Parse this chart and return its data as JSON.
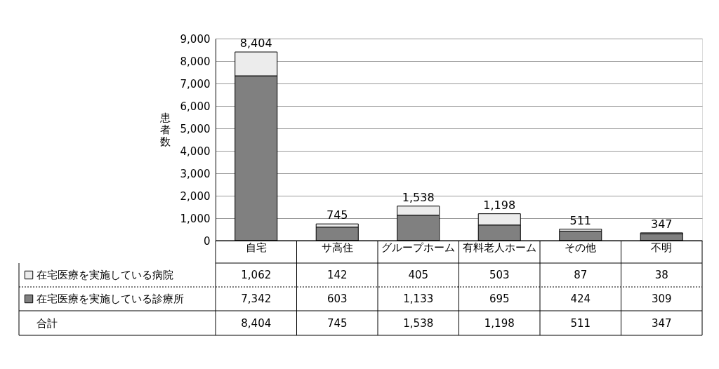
{
  "chart_data": {
    "type": "bar",
    "stacked": true,
    "ylabel": "患者数",
    "categories": [
      "自宅",
      "サ高住",
      "グループホーム",
      "有料老人ホーム",
      "その他",
      "不明"
    ],
    "series": [
      {
        "name": "在宅医療を実施している診療所",
        "color": "#808080",
        "values": [
          7342,
          603,
          1133,
          695,
          424,
          309
        ],
        "value_labels": [
          "7,342",
          "603",
          "1,133",
          "695",
          "424",
          "309"
        ]
      },
      {
        "name": "在宅医療を実施している病院",
        "color": "#ececec",
        "values": [
          1062,
          142,
          405,
          503,
          87,
          38
        ],
        "value_labels": [
          "1,062",
          "142",
          "405",
          "503",
          "87",
          "38"
        ]
      }
    ],
    "totals": [
      "8,404",
      "745",
      "1,538",
      "1,198",
      "511",
      "347"
    ],
    "annotations": [
      "合計"
    ],
    "ylim": [
      0,
      9000
    ],
    "yticks": [
      0,
      {
        "value": 1000,
        "label": "1,000"
      },
      {
        "value": 2000,
        "label": "2,000"
      },
      {
        "value": 3000,
        "label": "3,000"
      },
      {
        "value": 4000,
        "label": "4,000"
      },
      {
        "value": 5000,
        "label": "5,000"
      },
      {
        "value": 6000,
        "label": "6,000"
      },
      {
        "value": 7000,
        "label": "7,000"
      },
      {
        "value": 8000,
        "label": "8,000"
      },
      {
        "value": 9000,
        "label": "9,000"
      }
    ],
    "grid": "y",
    "legend": "bottom"
  }
}
